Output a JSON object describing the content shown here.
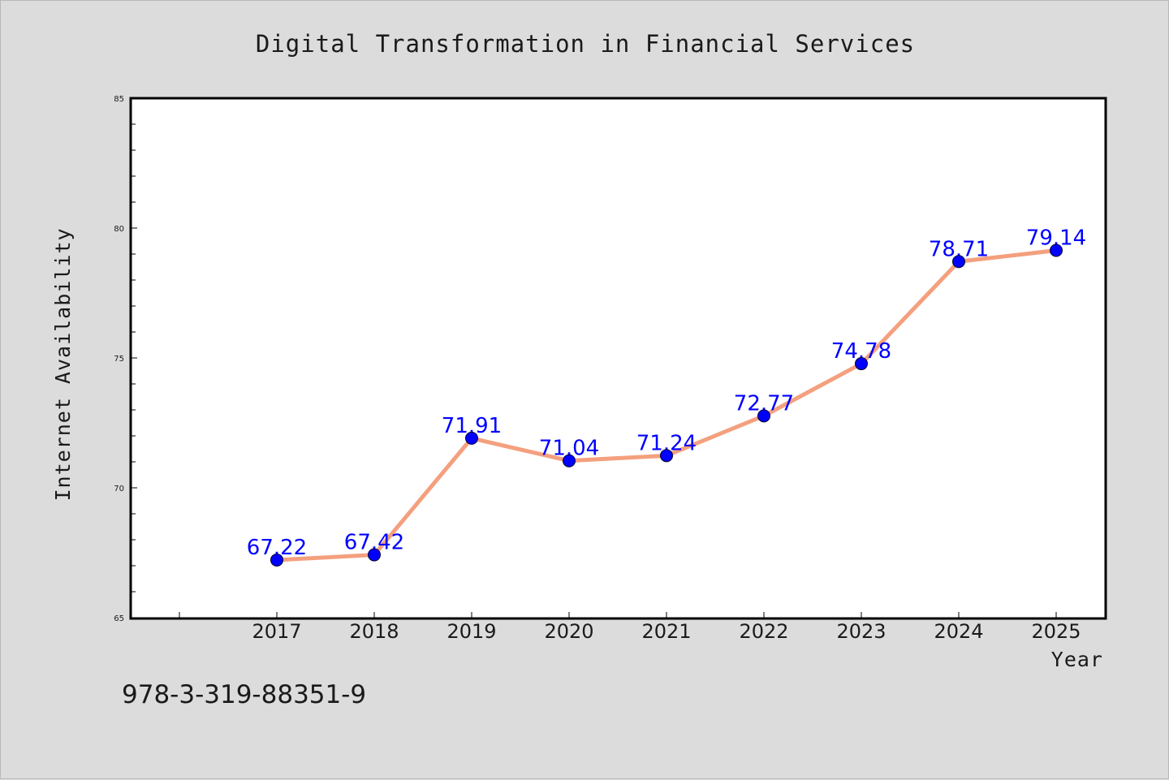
{
  "chart_data": {
    "type": "line",
    "title": "Digital Transformation in Financial Services",
    "xlabel": "Year",
    "ylabel": "Internet Availability",
    "categories": [
      "2017",
      "2018",
      "2019",
      "2020",
      "2021",
      "2022",
      "2023",
      "2024",
      "2025"
    ],
    "series": [
      {
        "values": [
          67.22,
          67.42,
          71.91,
          71.04,
          71.24,
          72.77,
          74.78,
          78.71,
          79.14
        ]
      }
    ],
    "data_labels": [
      "67.22",
      "67.42",
      "71.91",
      "71.04",
      "71.24",
      "72.77",
      "74.78",
      "78.71",
      "79.14"
    ],
    "ylim": [
      65,
      85
    ],
    "yticks": [
      "65",
      "70",
      "75",
      "80",
      "85"
    ],
    "grid": false,
    "legend": "none",
    "colors": {
      "line": "#f4a07e",
      "marker": "#0000ff",
      "label": "#0000ff",
      "background": "#dcdcdc",
      "plot_background": "#ffffff"
    }
  },
  "footer": {
    "code": "978-3-319-88351-9"
  }
}
